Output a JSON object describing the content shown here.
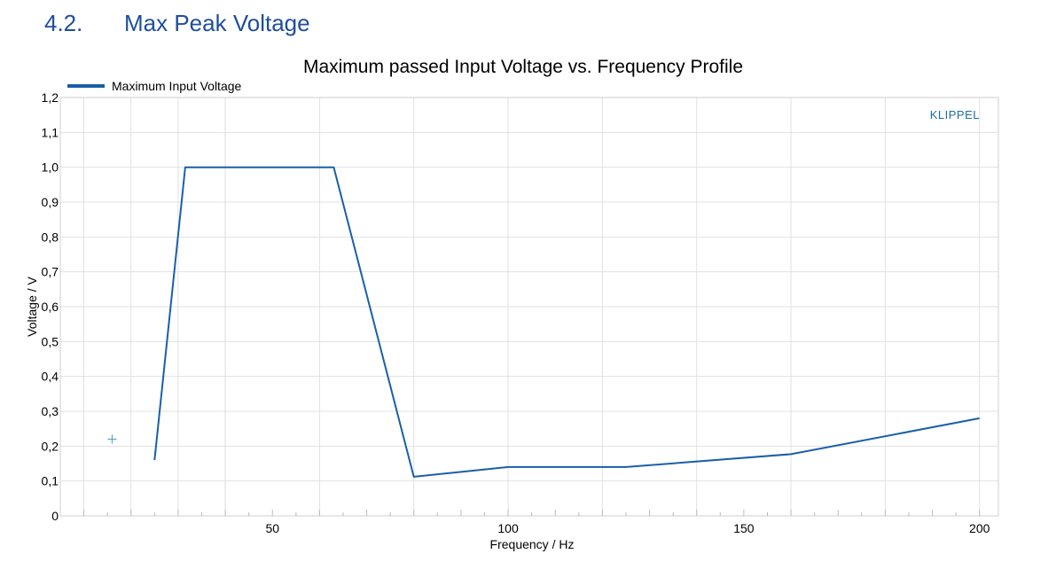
{
  "section": {
    "number": "4.2.",
    "title": "Max Peak Voltage"
  },
  "chart_data": {
    "type": "line",
    "title": "Maximum passed Input Voltage vs. Frequency Profile",
    "xlabel": "Frequency / Hz",
    "ylabel": "Voltage / V",
    "brand": "KLIPPEL",
    "xlim": [
      5,
      204
    ],
    "ylim": [
      0,
      1.2
    ],
    "x_ticks": [
      50,
      100,
      150,
      200
    ],
    "x_tick_labels": [
      "50",
      "100",
      "150",
      "200"
    ],
    "y_ticks": [
      0,
      0.1,
      0.2,
      0.3,
      0.4,
      0.5,
      0.6,
      0.7,
      0.8,
      0.9,
      1.0,
      1.1,
      1.2
    ],
    "y_tick_labels": [
      "0",
      "0,1",
      "0,2",
      "0,3",
      "0,4",
      "0,5",
      "0,6",
      "0,7",
      "0,8",
      "0,9",
      "1,0",
      "1,1",
      "1,2"
    ],
    "grid": true,
    "legend_position": "top-left",
    "series": [
      {
        "name": "Maximum Input Voltage",
        "color": "#1a5fa8",
        "x": [
          25,
          31.5,
          40,
          50,
          63,
          80,
          100,
          125,
          160,
          200
        ],
        "y": [
          0.16,
          1.0,
          1.0,
          1.0,
          1.0,
          0.112,
          0.14,
          0.14,
          0.177,
          0.28
        ]
      }
    ],
    "markers": [
      {
        "x": 16,
        "y": 0.22,
        "symbol": "+",
        "color": "#5aaabf"
      }
    ]
  }
}
